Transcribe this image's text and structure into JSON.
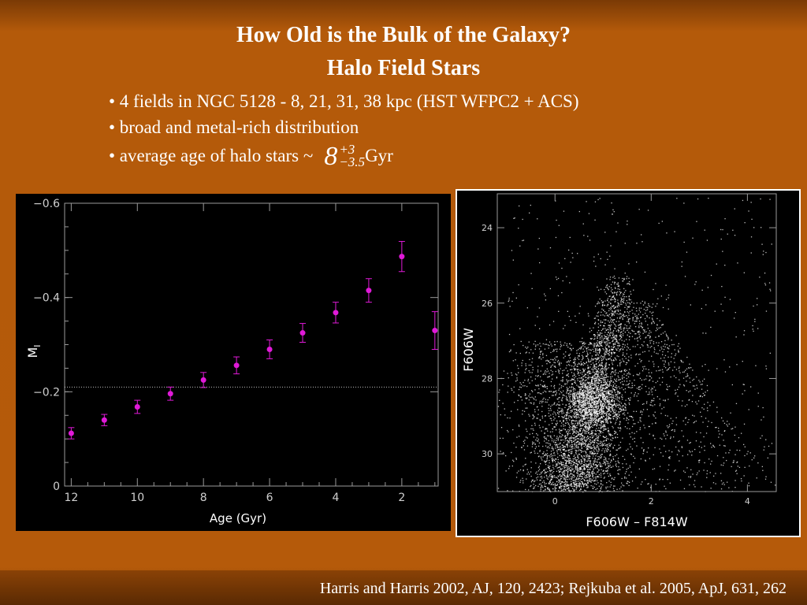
{
  "slide": {
    "title_line1": "How Old is the Bulk of the Galaxy?",
    "title_line2": "Halo Field Stars",
    "bullets": [
      "• 4 fields in NGC 5128 - 8, 21, 31, 38 kpc (HST WFPC2 + ACS)",
      "• broad and metal-rich distribution",
      "• average age of halo stars ~"
    ],
    "age_value": "8",
    "age_plus": "+3",
    "age_minus": "−3.5",
    "age_unit": "Gyr",
    "footer": "Harris and Harris 2002, AJ, 120, 2423;  Rejkuba et al. 2005, ApJ, 631, 262"
  },
  "colors": {
    "points": "#e01ad8",
    "background": "#b55a0a",
    "panel": "#000000"
  },
  "chart_data": [
    {
      "type": "scatter",
      "xlabel": "Age (Gyr)",
      "ylabel": "M",
      "ylabel_sub": "I",
      "xlim": [
        12.2,
        0.9
      ],
      "ylim": [
        0,
        -0.6
      ],
      "xticks": [
        12,
        10,
        8,
        6,
        4,
        2
      ],
      "xtick_labels": [
        "12",
        "10",
        "8",
        "6",
        "4",
        "2"
      ],
      "yticks": [
        0,
        -0.2,
        -0.4,
        -0.6
      ],
      "ytick_labels": [
        "0",
        "−0.2",
        "−0.4",
        "−0.6"
      ],
      "reference_line": -0.21,
      "points": [
        {
          "x": 12,
          "y": -0.112,
          "err": 0.012
        },
        {
          "x": 11,
          "y": -0.14,
          "err": 0.012
        },
        {
          "x": 10,
          "y": -0.168,
          "err": 0.014
        },
        {
          "x": 9,
          "y": -0.196,
          "err": 0.014
        },
        {
          "x": 8,
          "y": -0.225,
          "err": 0.016
        },
        {
          "x": 7,
          "y": -0.256,
          "err": 0.018
        },
        {
          "x": 6,
          "y": -0.29,
          "err": 0.02
        },
        {
          "x": 5,
          "y": -0.325,
          "err": 0.02
        },
        {
          "x": 4,
          "y": -0.368,
          "err": 0.022
        },
        {
          "x": 3,
          "y": -0.415,
          "err": 0.025
        },
        {
          "x": 2,
          "y": -0.487,
          "err": 0.032
        },
        {
          "x": 1,
          "y": -0.33,
          "err": 0.04
        }
      ]
    },
    {
      "type": "scatter",
      "xlabel": "F606W – F814W",
      "ylabel": "F606W",
      "xlim": [
        -1.2,
        4.6
      ],
      "ylim": [
        31,
        23.1
      ],
      "xticks": [
        0,
        2,
        4
      ],
      "xtick_labels": [
        "0",
        "2",
        "4"
      ],
      "yticks": [
        24,
        26,
        28,
        30
      ],
      "ytick_labels": [
        "24",
        "26",
        "28",
        "30"
      ],
      "density_description": "dense red giant branch from (0.3, 30) curving up to (1.3, 25.2), dense clump near (0.9, 28.6)"
    }
  ]
}
